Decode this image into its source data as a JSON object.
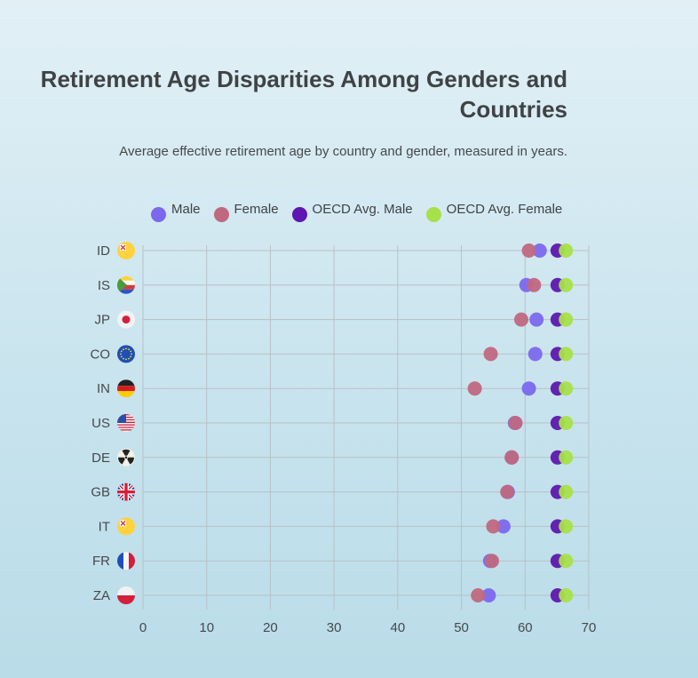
{
  "chart_data": {
    "type": "scatter",
    "title": "Retirement Age Disparities Among Genders and Countries",
    "subtitle": "Average effective retirement age by country and gender, measured in years.",
    "categories": [
      "ID",
      "IS",
      "JP",
      "CO",
      "IN",
      "US",
      "DE",
      "GB",
      "IT",
      "FR",
      "ZA"
    ],
    "xlim": [
      0,
      70
    ],
    "xticks": [
      0,
      10,
      20,
      30,
      40,
      50,
      60,
      70
    ],
    "grid": true,
    "legend_position": "top",
    "series": [
      {
        "name": "Male",
        "color": "#7b68ee",
        "values": [
          62.3,
          60.2,
          61.8,
          61.6,
          60.6,
          58.4,
          57.9,
          57.3,
          56.6,
          54.5,
          54.3
        ]
      },
      {
        "name": "Female",
        "color": "#c0687f",
        "values": [
          60.6,
          61.4,
          59.4,
          54.6,
          52.1,
          58.5,
          57.9,
          57.2,
          55.0,
          54.8,
          52.6
        ]
      },
      {
        "name": "OECD Avg. Male",
        "color": "#5e17b0",
        "values": [
          65.1,
          65.1,
          65.1,
          65.1,
          65.1,
          65.1,
          65.1,
          65.1,
          65.1,
          65.1,
          65.1
        ]
      },
      {
        "name": "OECD Avg. Female",
        "color": "#a6e04a",
        "values": [
          66.4,
          66.4,
          66.4,
          66.4,
          66.4,
          66.4,
          66.4,
          66.4,
          66.4,
          66.4,
          66.4
        ]
      }
    ],
    "flag_icons": [
      "vatican-flag-icon",
      "comoros-flag-icon",
      "japan-flag-icon",
      "eu-flag-icon",
      "germany-flag-icon",
      "usa-flag-icon",
      "radiation-flag-icon",
      "uk-flag-icon",
      "vatican-flag-icon",
      "france-flag-icon",
      "poland-flag-icon"
    ]
  }
}
